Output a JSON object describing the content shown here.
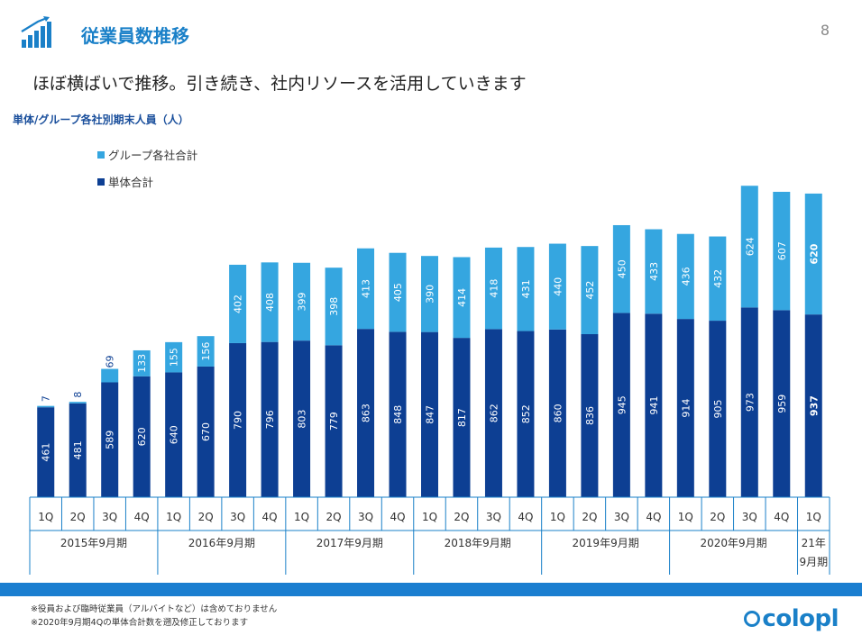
{
  "header": {
    "title": "従業員数推移",
    "page_number": "8",
    "subtitle": "ほぼ横ばいで推移。引き続き、社内リソースを活用していきます"
  },
  "colors": {
    "accent": "#1a80c8",
    "single": "#0d3f93",
    "group": "#35a6e0",
    "footer_band": "#1a7ed0"
  },
  "chart_data": {
    "type": "bar",
    "stacked": true,
    "title": "単体/グループ各社別期末人員（人）",
    "categories": [
      "1Q",
      "2Q",
      "3Q",
      "4Q",
      "1Q",
      "2Q",
      "3Q",
      "4Q",
      "1Q",
      "2Q",
      "3Q",
      "4Q",
      "1Q",
      "2Q",
      "3Q",
      "4Q",
      "1Q",
      "2Q",
      "3Q",
      "4Q",
      "1Q",
      "2Q",
      "3Q",
      "4Q",
      "1Q"
    ],
    "groups": [
      {
        "label": "2015年9月期",
        "count": 4
      },
      {
        "label": "2016年9月期",
        "count": 4
      },
      {
        "label": "2017年9月期",
        "count": 4
      },
      {
        "label": "2018年9月期",
        "count": 4
      },
      {
        "label": "2019年9月期",
        "count": 4
      },
      {
        "label": "2020年9月期",
        "count": 4
      },
      {
        "label": "21年\n9月期",
        "count": 1
      }
    ],
    "series": [
      {
        "name": "単体合計",
        "color": "#0d3f93",
        "values": [
          461,
          481,
          589,
          620,
          640,
          670,
          790,
          796,
          803,
          779,
          863,
          848,
          847,
          817,
          862,
          852,
          860,
          836,
          945,
          941,
          914,
          905,
          973,
          959,
          937
        ]
      },
      {
        "name": "グループ各社合計",
        "color": "#35a6e0",
        "values": [
          7,
          8,
          69,
          133,
          155,
          156,
          402,
          408,
          399,
          398,
          413,
          405,
          390,
          414,
          418,
          431,
          440,
          452,
          450,
          433,
          436,
          432,
          624,
          607,
          620
        ]
      }
    ],
    "legend_order": [
      "グループ各社合計",
      "単体合計"
    ],
    "legend_position": "top-left",
    "emphasized_last": true,
    "ylim": [
      0,
      1700
    ],
    "grid": false
  },
  "footer": {
    "notes": [
      "※役員および臨時従業員（アルバイトなど）は含めておりません",
      "※2020年9月期4Qの単体合計数を遡及修正しております"
    ],
    "logo_text": "colopl"
  }
}
